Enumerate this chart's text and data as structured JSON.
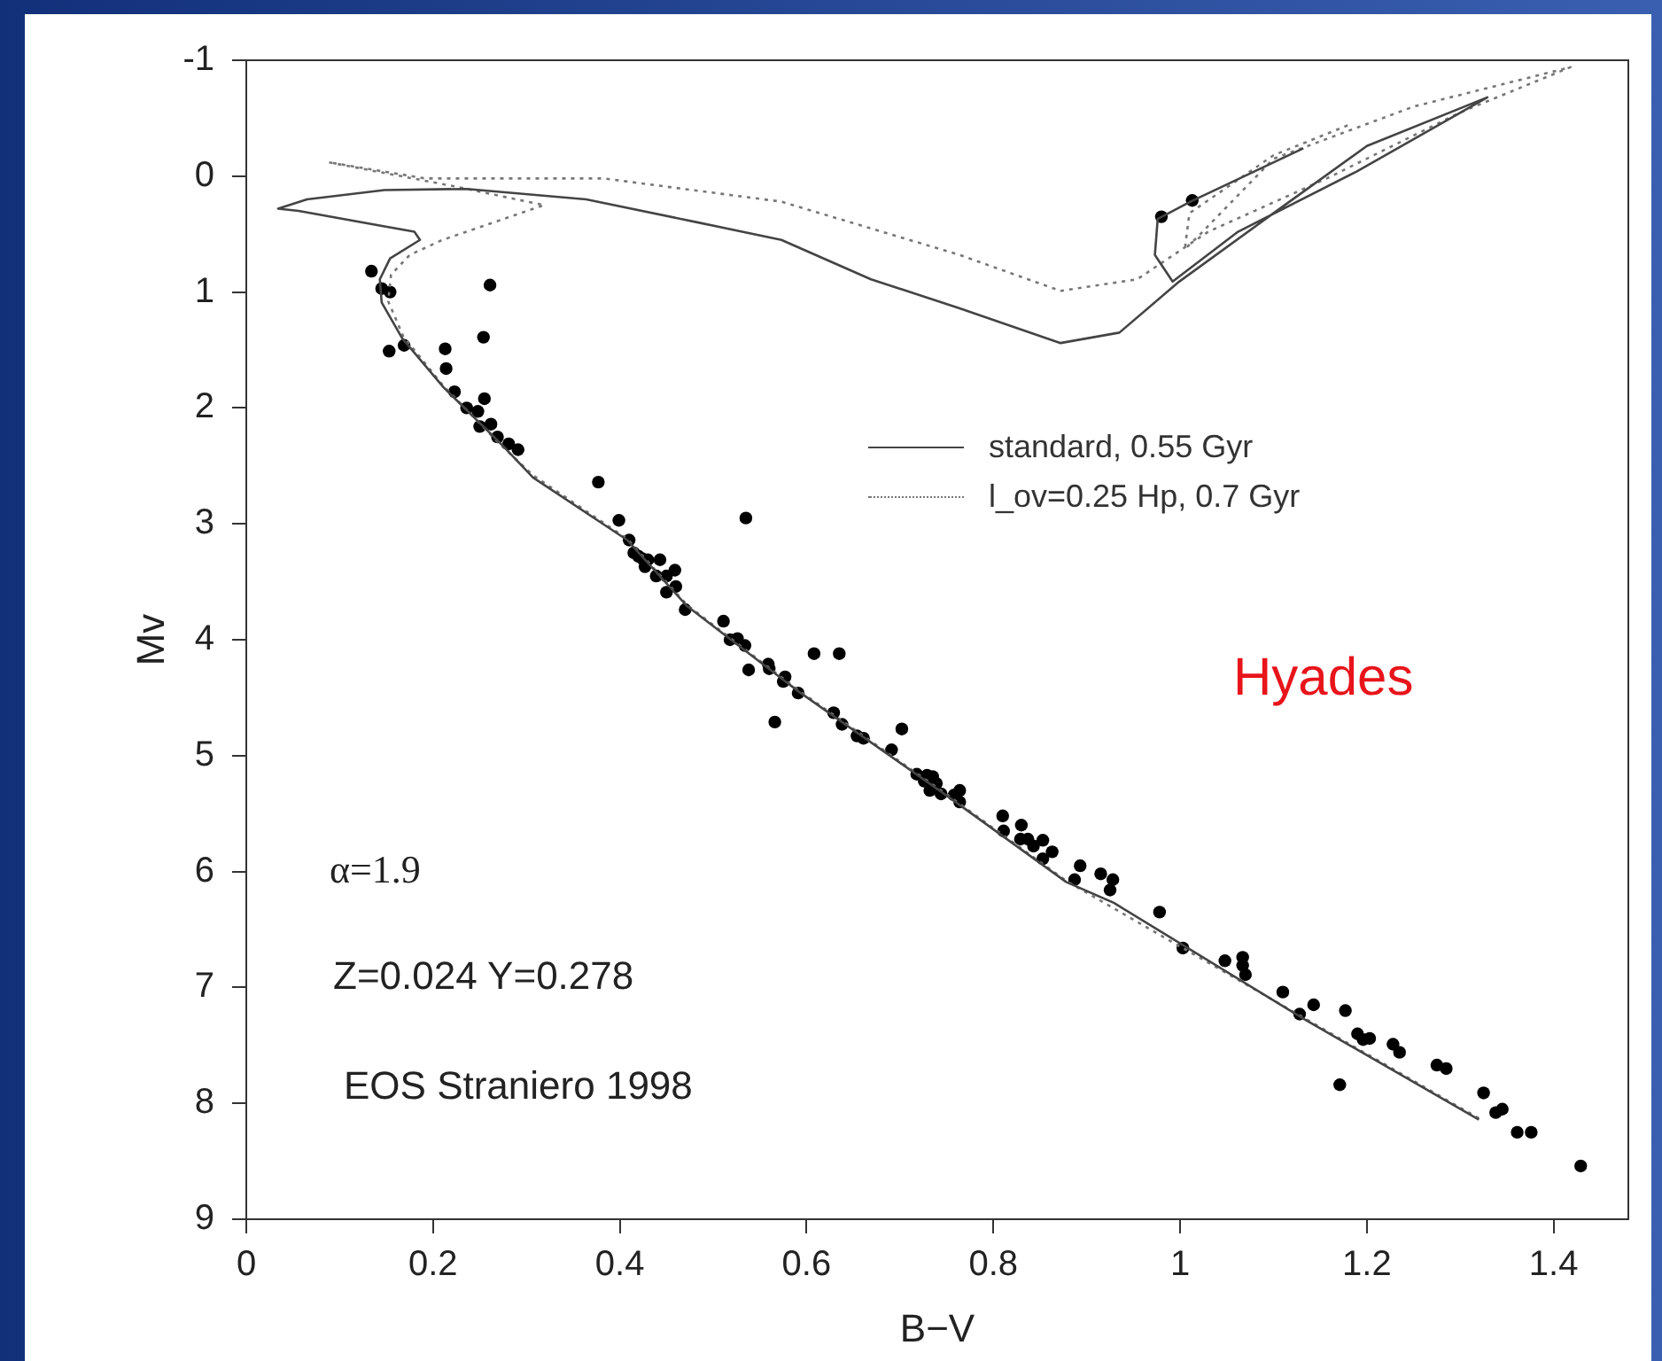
{
  "chart_data": {
    "type": "scatter",
    "xlabel": "B−V",
    "ylabel": "Mv",
    "xlim": [
      0,
      1.48
    ],
    "ylim": [
      9,
      -1
    ],
    "xticks": [
      0,
      0.2,
      0.4,
      0.6,
      0.8,
      1,
      1.2,
      1.4
    ],
    "yticks": [
      -1,
      0,
      1,
      2,
      3,
      4,
      5,
      6,
      7,
      8,
      9
    ],
    "legend": "right",
    "marker": "circle",
    "annotations": [
      "Hyades",
      "α=1.9",
      "Z=0.024 Y=0.278",
      "EOS Straniero 1998"
    ],
    "series": [
      {
        "name": "standard, 0.55 Gyr",
        "type": "line",
        "color": "#444444",
        "line_style": "solid",
        "marker": "none",
        "x": [
          1.32,
          1.132,
          0.929,
          0.878,
          0.751,
          0.592,
          0.472,
          0.408,
          0.307,
          0.274,
          0.211,
          0.167,
          0.145,
          0.143,
          0.154,
          0.186,
          0.18,
          0.056,
          0.034,
          0.065,
          0.148,
          0.236,
          0.364,
          0.484,
          0.573,
          0.669,
          0.764,
          0.872,
          0.935,
          0.999,
          1.1,
          1.2,
          1.329,
          1.189,
          1.062,
          0.992,
          0.973,
          0.976,
          1.011,
          1.132
        ],
        "values": [
          8.14,
          7.27,
          6.27,
          6.09,
          5.35,
          4.45,
          3.71,
          3.14,
          2.6,
          2.32,
          1.82,
          1.4,
          1.09,
          0.89,
          0.71,
          0.55,
          0.48,
          0.3,
          0.28,
          0.2,
          0.12,
          0.11,
          0.2,
          0.4,
          0.55,
          0.89,
          1.14,
          1.44,
          1.35,
          0.91,
          0.32,
          -0.26,
          -0.68,
          -0.04,
          0.48,
          0.91,
          0.68,
          0.37,
          0.22,
          -0.24
        ]
      },
      {
        "name": "l_ov=0.25 Hp, 0.7 Gyr",
        "type": "line",
        "color": "#777777",
        "line_style": "dotted",
        "marker": "none",
        "x": [
          1.32,
          1.132,
          0.878,
          0.751,
          0.592,
          0.472,
          0.408,
          0.307,
          0.27,
          0.21,
          0.168,
          0.152,
          0.155,
          0.175,
          0.21,
          0.319,
          0.224,
          0.088,
          0.192,
          0.383,
          0.573,
          0.764,
          0.872,
          0.954,
          1.03,
          1.157,
          1.3,
          1.418,
          1.25,
          1.1,
          1.018,
          1.005,
          1.01,
          1.1,
          1.183
        ],
        "values": [
          8.13,
          7.26,
          6.08,
          5.34,
          4.44,
          3.7,
          3.13,
          2.58,
          2.3,
          1.8,
          1.38,
          1.08,
          0.85,
          0.68,
          0.55,
          0.25,
          0.09,
          -0.12,
          0.02,
          0.02,
          0.22,
          0.68,
          0.99,
          0.89,
          0.48,
          0.02,
          -0.55,
          -0.94,
          -0.6,
          -0.15,
          0.53,
          0.63,
          0.32,
          -0.18,
          -0.45
        ]
      },
      {
        "type": "scatter",
        "color": "#000000",
        "x": [
          0.134,
          0.145,
          0.154,
          0.261,
          0.169,
          0.153,
          0.213,
          0.254,
          0.214,
          0.223,
          0.255,
          0.236,
          0.248,
          0.25,
          0.262,
          0.269,
          0.281,
          0.291,
          0.377,
          0.399,
          0.535,
          0.41,
          0.415,
          0.42,
          0.424,
          0.43,
          0.443,
          0.427,
          0.439,
          0.45,
          0.459,
          0.45,
          0.46,
          0.47,
          0.511,
          0.518,
          0.526,
          0.534,
          0.608,
          0.635,
          0.538,
          0.559,
          0.56,
          0.577,
          0.575,
          0.591,
          0.566,
          0.629,
          0.638,
          0.654,
          0.661,
          0.702,
          0.691,
          0.718,
          0.729,
          0.735,
          0.726,
          0.739,
          0.732,
          0.744,
          0.758,
          0.764,
          0.764,
          0.81,
          0.811,
          0.83,
          0.829,
          0.837,
          0.843,
          0.853,
          0.863,
          0.853,
          0.893,
          0.887,
          0.915,
          0.928,
          0.925,
          0.978,
          1.003,
          1.048,
          1.067,
          1.067,
          1.07,
          1.11,
          1.128,
          1.143,
          1.177,
          1.171,
          1.19,
          1.196,
          1.203,
          1.228,
          1.235,
          1.275,
          1.285,
          1.325,
          1.338,
          1.345,
          1.361,
          1.376,
          1.429,
          0.98,
          1.013
        ],
        "values": [
          0.82,
          0.97,
          1,
          0.94,
          1.46,
          1.51,
          1.49,
          1.39,
          1.66,
          1.86,
          1.92,
          2,
          2.03,
          2.16,
          2.14,
          2.25,
          2.31,
          2.36,
          2.64,
          2.97,
          2.95,
          3.14,
          3.25,
          3.28,
          3.3,
          3.31,
          3.31,
          3.37,
          3.45,
          3.45,
          3.4,
          3.59,
          3.54,
          3.74,
          3.84,
          4,
          3.99,
          4.05,
          4.12,
          4.12,
          4.26,
          4.21,
          4.25,
          4.32,
          4.36,
          4.46,
          4.71,
          4.63,
          4.73,
          4.83,
          4.85,
          4.77,
          4.95,
          5.16,
          5.17,
          5.18,
          5.22,
          5.24,
          5.3,
          5.33,
          5.34,
          5.3,
          5.4,
          5.52,
          5.65,
          5.6,
          5.72,
          5.72,
          5.78,
          5.73,
          5.83,
          5.89,
          5.95,
          6.07,
          6.02,
          6.07,
          6.16,
          6.35,
          6.66,
          6.77,
          6.74,
          6.81,
          6.89,
          7.04,
          7.23,
          7.15,
          7.2,
          7.84,
          7.4,
          7.45,
          7.44,
          7.49,
          7.56,
          7.67,
          7.7,
          7.91,
          8.08,
          8.05,
          8.25,
          8.25,
          8.54,
          0.35,
          0.21
        ]
      }
    ]
  }
}
